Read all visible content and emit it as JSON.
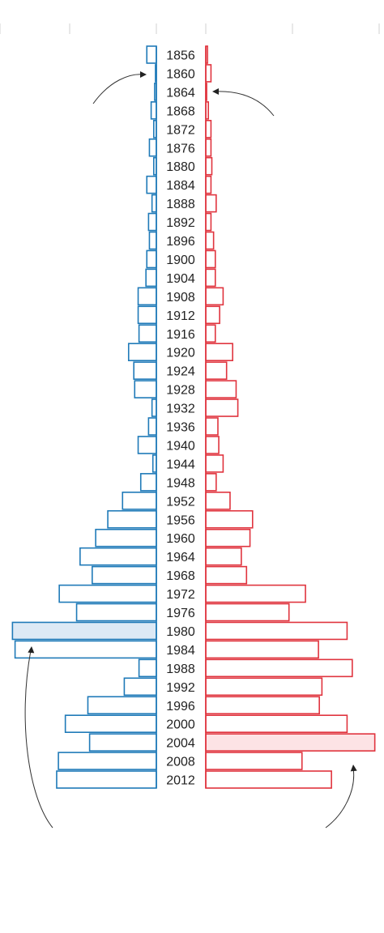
{
  "chart_data": {
    "type": "bar",
    "orientation": "horizontal",
    "layout": "back-to-back",
    "categories": [
      "1856",
      "1860",
      "1864",
      "1868",
      "1872",
      "1876",
      "1880",
      "1884",
      "1888",
      "1892",
      "1896",
      "1900",
      "1904",
      "1908",
      "1912",
      "1916",
      "1920",
      "1924",
      "1928",
      "1932",
      "1936",
      "1940",
      "1944",
      "1948",
      "1952",
      "1956",
      "1960",
      "1964",
      "1968",
      "1972",
      "1976",
      "1980",
      "1984",
      "1988",
      "1992",
      "1996",
      "2000",
      "2004",
      "2008",
      "2012"
    ],
    "series": [
      {
        "side": "left",
        "color": "#1f7ab8",
        "highlight_fill": "#dce9f5",
        "highlight_category": "1980",
        "values": [
          0.11,
          0.01,
          0.02,
          0.06,
          0.03,
          0.08,
          0.03,
          0.11,
          0.05,
          0.09,
          0.08,
          0.11,
          0.12,
          0.21,
          0.21,
          0.2,
          0.32,
          0.26,
          0.25,
          0.05,
          0.09,
          0.21,
          0.04,
          0.18,
          0.39,
          0.56,
          0.7,
          0.88,
          0.74,
          1.12,
          0.92,
          1.66,
          1.63,
          0.2,
          0.37,
          0.79,
          1.05,
          0.77,
          1.13,
          1.15
        ]
      },
      {
        "side": "right",
        "color": "#e0343e",
        "highlight_fill": "#fde3e5",
        "highlight_category": "2004",
        "values": [
          0.02,
          0.06,
          0.01,
          0.03,
          0.06,
          0.06,
          0.07,
          0.06,
          0.12,
          0.06,
          0.09,
          0.11,
          0.11,
          0.2,
          0.16,
          0.11,
          0.31,
          0.24,
          0.35,
          0.37,
          0.14,
          0.15,
          0.2,
          0.12,
          0.28,
          0.54,
          0.51,
          0.41,
          0.47,
          1.15,
          0.96,
          1.63,
          1.3,
          1.69,
          1.34,
          1.31,
          1.63,
          1.95,
          1.11,
          1.45
        ]
      }
    ],
    "xlim": [
      0,
      2.0
    ],
    "grid": true,
    "annotations": [
      {
        "type": "arrow",
        "side": "left",
        "target": "1860"
      },
      {
        "type": "arrow",
        "side": "right",
        "target": "1864"
      },
      {
        "type": "arrow",
        "side": "left",
        "target": "1984"
      },
      {
        "type": "arrow",
        "side": "right",
        "target": "2008"
      }
    ]
  }
}
